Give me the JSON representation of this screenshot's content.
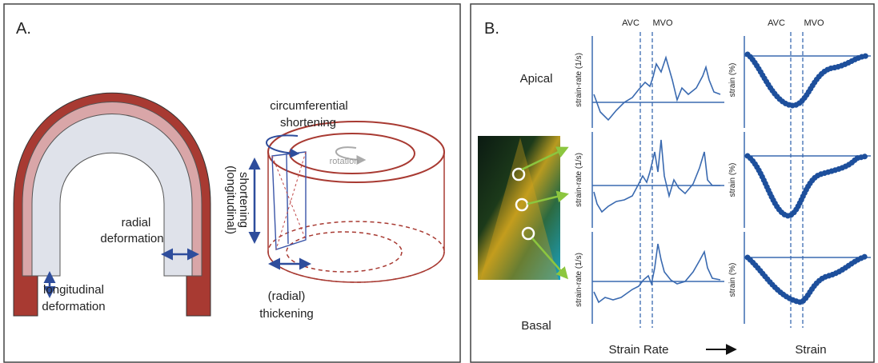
{
  "panel_a": {
    "label": "A.",
    "circumferential_shortening": [
      "circumferential",
      "shortening"
    ],
    "rotation": "rotation",
    "longitudinal_shortening": [
      "(longitudinal)",
      "shortening"
    ],
    "radial_deformation": [
      "radial",
      "deformation"
    ],
    "longitudinal_deformation": [
      "longitudinal",
      "deformation"
    ],
    "radial_thickening": [
      "(radial)",
      "thickening"
    ]
  },
  "panel_b": {
    "label": "B.",
    "rows": [
      "Apical",
      "Basal"
    ],
    "events_strain_rate": [
      "AVC",
      "MVO"
    ],
    "events_strain": [
      "AVC",
      "MVO"
    ],
    "strain_rate_axis": [
      "strain-rate (1/s)",
      "strain-rate (1/s)",
      "strain-rate (1/s)"
    ],
    "strain_axis": [
      "strain (%)",
      "strain (%)",
      "strain (%)"
    ],
    "footer": [
      "Strain Rate",
      "Strain"
    ]
  }
}
